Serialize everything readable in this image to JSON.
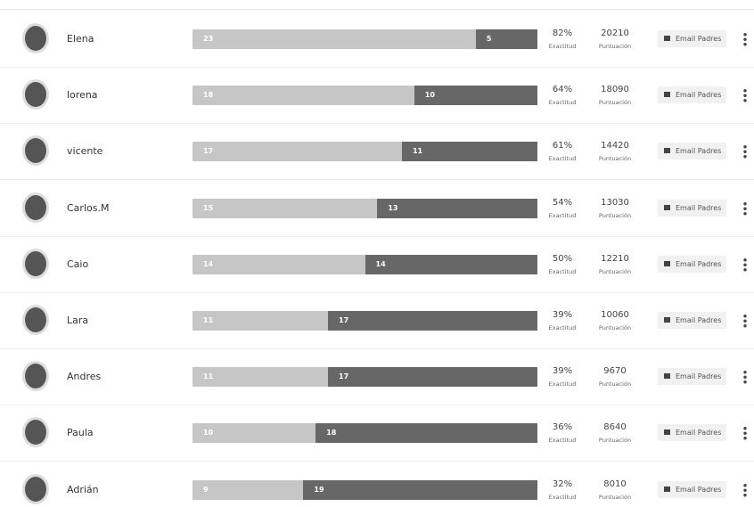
{
  "labels": {
    "accuracy": "Exactitud",
    "score": "Puntuación",
    "email": "Email Padres"
  },
  "rows": [
    {
      "name": "Elena",
      "correct": 23,
      "incorrect": 5,
      "accuracy": "82%",
      "score": 20210
    },
    {
      "name": "lorena",
      "correct": 18,
      "incorrect": 10,
      "accuracy": "64%",
      "score": 18090
    },
    {
      "name": "vicente",
      "correct": 17,
      "incorrect": 11,
      "accuracy": "61%",
      "score": 14420
    },
    {
      "name": "Carlos.M",
      "correct": 15,
      "incorrect": 13,
      "accuracy": "54%",
      "score": 13030
    },
    {
      "name": "Caio",
      "correct": 14,
      "incorrect": 14,
      "accuracy": "50%",
      "score": 12210
    },
    {
      "name": "Lara",
      "correct": 11,
      "incorrect": 17,
      "accuracy": "39%",
      "score": 10060
    },
    {
      "name": "Andres",
      "correct": 11,
      "incorrect": 17,
      "accuracy": "39%",
      "score": 9670
    },
    {
      "name": "Paula",
      "correct": 10,
      "incorrect": 18,
      "accuracy": "36%",
      "score": 8640
    },
    {
      "name": "Adrián",
      "correct": 9,
      "incorrect": 19,
      "accuracy": "32%",
      "score": 8010
    }
  ]
}
